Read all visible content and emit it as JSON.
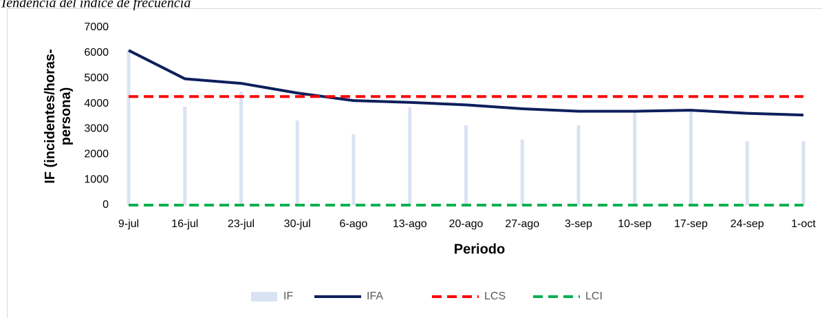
{
  "chart_data": {
    "type": "line",
    "title": "Tendencia del índice de frecuencia",
    "x_label": "Periodo",
    "y_label": "IF (incidentes/horas-persona)",
    "categories": [
      "9-jul",
      "16-jul",
      "23-jul",
      "30-jul",
      "6-ago",
      "13-ago",
      "20-ago",
      "27-ago",
      "3-sep",
      "10-sep",
      "17-sep",
      "24-sep",
      "1-oct"
    ],
    "series": [
      {
        "name": "IF",
        "kind": "bar",
        "color": "#dae3f3",
        "values": [
          6100,
          3880,
          4480,
          3340,
          2790,
          3850,
          3150,
          2580,
          3150,
          3690,
          3740,
          2520,
          2520
        ]
      },
      {
        "name": "IFA",
        "kind": "line",
        "color": "#0d1f5c",
        "values": [
          6100,
          4980,
          4800,
          4420,
          4120,
          4050,
          3950,
          3800,
          3700,
          3700,
          3740,
          3620,
          3550
        ]
      },
      {
        "name": "LCS",
        "kind": "dashed",
        "color": "#ff0000",
        "values": [
          4280,
          4280,
          4280,
          4280,
          4280,
          4280,
          4280,
          4280,
          4280,
          4280,
          4280,
          4280,
          4280
        ]
      },
      {
        "name": "LCI",
        "kind": "dashed",
        "color": "#00b050",
        "values": [
          0,
          0,
          0,
          0,
          0,
          0,
          0,
          0,
          0,
          0,
          0,
          0,
          0
        ]
      }
    ],
    "ylim": [
      0,
      7000
    ],
    "yticks": [
      0,
      1000,
      2000,
      3000,
      4000,
      5000,
      6000,
      7000
    ],
    "legend": "bottom"
  }
}
